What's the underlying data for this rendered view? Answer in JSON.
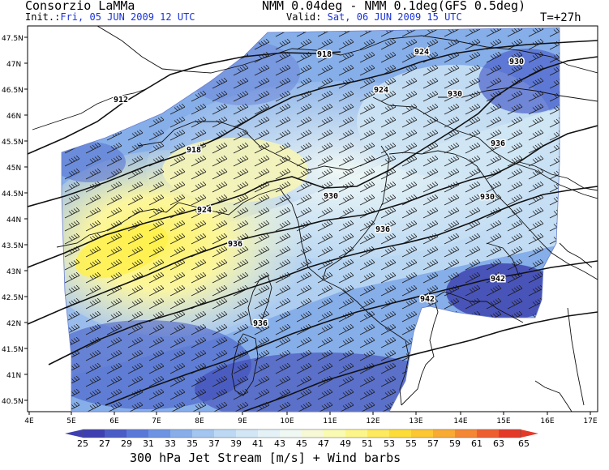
{
  "header": {
    "org": "Consorzio LaMMa",
    "model": "NMM 0.04deg - NMM 0.1deg(GFS 0.5deg)",
    "init_prefix": "Init.:",
    "init_value": "Fri, 05 JUN 2009   12 UTC",
    "valid_prefix": "Valid:",
    "valid_value": "Sat, 06 JUN 2009   15 UTC",
    "step": "T=+27h"
  },
  "axes": {
    "lat_labels": [
      "47.5N",
      "47N",
      "46.5N",
      "46N",
      "45.5N",
      "45N",
      "44.5N",
      "44N",
      "43.5N",
      "43N",
      "42.5N",
      "42N",
      "41.5N",
      "41N",
      "40.5N"
    ],
    "lon_labels": [
      "4E",
      "5E",
      "6E",
      "7E",
      "8E",
      "9E",
      "10E",
      "11E",
      "12E",
      "13E",
      "14E",
      "15E",
      "16E",
      "17E"
    ]
  },
  "contours": {
    "labels": [
      "918",
      "924",
      "930",
      "912",
      "918",
      "924",
      "930",
      "924",
      "930",
      "936",
      "936",
      "930",
      "936",
      "942",
      "942",
      "936"
    ]
  },
  "colorbar": {
    "values": [
      "25",
      "27",
      "29",
      "31",
      "33",
      "35",
      "37",
      "39",
      "41",
      "43",
      "45",
      "47",
      "49",
      "51",
      "53",
      "55",
      "57",
      "59",
      "61",
      "63",
      "65"
    ],
    "colors": [
      "#3e3fb0",
      "#4a5cc6",
      "#5a78d8",
      "#6d93e3",
      "#88ade9",
      "#a3c5ef",
      "#bcd8f3",
      "#d2e7f6",
      "#e4f2f8",
      "#f0f8f4",
      "#f6f8d6",
      "#fafbb2",
      "#fcf68a",
      "#fdea5e",
      "#fddc3a",
      "#fcc733",
      "#f9aa33",
      "#f48733",
      "#ee5f30",
      "#e43a2a"
    ],
    "unit_caption": "300 hPa Jet Stream [m/s] + Wind barbs"
  }
}
